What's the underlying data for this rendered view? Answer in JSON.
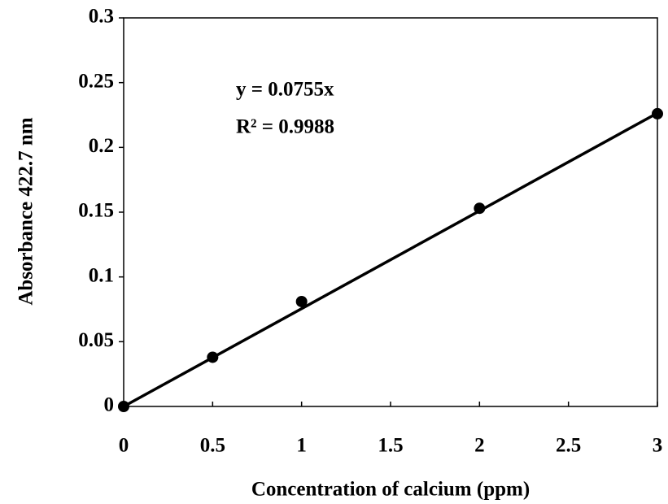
{
  "chart_data": {
    "type": "scatter",
    "x_label": "Concentration of calcium (ppm)",
    "y_label": "Absorbance 422.7 nm",
    "annotations": [
      "y = 0.0755x",
      "R² = 0.9988"
    ],
    "x": [
      0,
      0.5,
      1,
      2,
      3
    ],
    "values": [
      0,
      0.038,
      0.081,
      0.153,
      0.226
    ],
    "color": "#000000",
    "trendline": {
      "x": [
        0,
        3
      ],
      "values": [
        0,
        0.2265
      ]
    },
    "xlim": [
      0,
      3
    ],
    "xticks": [
      0,
      0.5,
      1,
      1.5,
      2,
      2.5,
      3
    ],
    "ylim": [
      0,
      0.3
    ],
    "yticks": [
      0,
      0.05,
      0.1,
      0.15,
      0.2,
      0.25,
      0.3
    ],
    "grid": false
  }
}
